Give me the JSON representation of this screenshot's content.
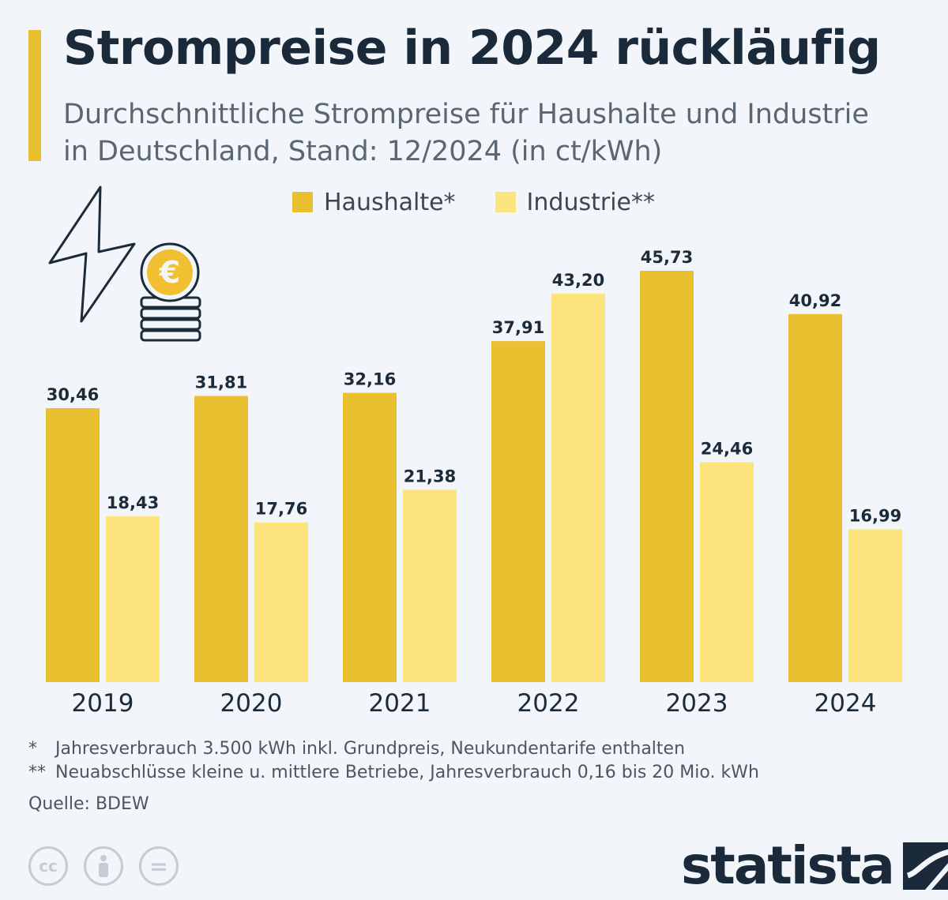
{
  "header": {
    "title": "Strompreise in 2024 rückläufig",
    "subtitle": "Durchschnittliche Strompreise für Haushalte und Industrie in Deutschland, Stand: 12/2024 (in ct/kWh)"
  },
  "colors": {
    "accent": "#e8c030",
    "haushalte": "#e8c030",
    "industrie": "#fce37c",
    "icon_coin": "#f0c030"
  },
  "icons": {
    "lightning": "lightning-icon",
    "coin": "euro-coin-icon",
    "coin_symbol": "€"
  },
  "chart_data": {
    "type": "bar",
    "categories": [
      "2019",
      "2020",
      "2021",
      "2022",
      "2023",
      "2024"
    ],
    "series": [
      {
        "name": "Haushalte*",
        "values": [
          30.46,
          31.81,
          32.16,
          37.91,
          45.73,
          40.92
        ],
        "labels": [
          "30,46",
          "31,81",
          "32,16",
          "37,91",
          "45,73",
          "40,92"
        ]
      },
      {
        "name": "Industrie**",
        "values": [
          18.43,
          17.76,
          21.38,
          43.2,
          24.46,
          16.99
        ],
        "labels": [
          "18,43",
          "17,76",
          "21,38",
          "43,20",
          "24,46",
          "16,99"
        ]
      }
    ],
    "ylim": [
      0,
      45.73
    ],
    "legend_position": "top",
    "grid": false
  },
  "footnotes": {
    "fn1_marker": "*",
    "fn1_text": "Jahresverbrauch 3.500 kWh inkl. Grundpreis, Neukundentarife enthalten",
    "fn2_marker": "**",
    "fn2_text": "Neuabschlüsse kleine u. mittlere Betriebe, Jahresverbrauch 0,16 bis 20 Mio. kWh",
    "source": "Quelle: BDEW"
  },
  "license_icons": {
    "cc": "cc",
    "by": "by-icon",
    "nd": "="
  },
  "brand": {
    "name": "statista"
  }
}
